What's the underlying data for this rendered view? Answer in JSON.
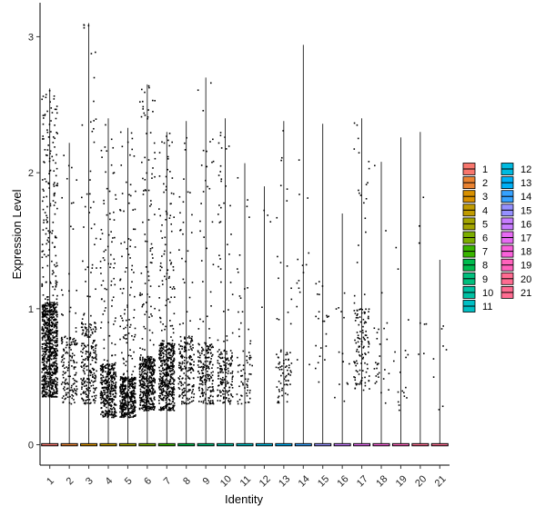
{
  "chart_data": {
    "type": "violin",
    "xlabel": "Identity",
    "ylabel": "Expression Level",
    "ylim": [
      -0.15,
      3.25
    ],
    "yticks": [
      0,
      1,
      2,
      3
    ],
    "grid": false,
    "legend_position": "right",
    "categories": [
      "1",
      "2",
      "3",
      "4",
      "5",
      "6",
      "7",
      "8",
      "9",
      "10",
      "11",
      "12",
      "13",
      "14",
      "15",
      "16",
      "17",
      "18",
      "19",
      "20",
      "21"
    ],
    "series": [
      {
        "name": "1",
        "color": "#F8766D",
        "max": 2.62,
        "points": 900,
        "dense_range": [
          0.35,
          1.05
        ]
      },
      {
        "name": "2",
        "color": "#EA8331",
        "max": 2.22,
        "points": 160,
        "dense_range": [
          0.3,
          0.8
        ]
      },
      {
        "name": "3",
        "color": "#D89000",
        "max": 3.1,
        "points": 260,
        "dense_range": [
          0.3,
          0.9
        ]
      },
      {
        "name": "4",
        "color": "#C09B00",
        "max": 2.4,
        "points": 420,
        "dense_range": [
          0.2,
          0.6
        ]
      },
      {
        "name": "5",
        "color": "#A3A500",
        "max": 2.33,
        "points": 460,
        "dense_range": [
          0.2,
          0.5
        ]
      },
      {
        "name": "6",
        "color": "#7CAE00",
        "max": 2.65,
        "points": 480,
        "dense_range": [
          0.25,
          0.65
        ]
      },
      {
        "name": "7",
        "color": "#39B600",
        "max": 2.3,
        "points": 520,
        "dense_range": [
          0.25,
          0.75
        ]
      },
      {
        "name": "8",
        "color": "#00BB4E",
        "max": 2.38,
        "points": 200,
        "dense_range": [
          0.3,
          0.8
        ]
      },
      {
        "name": "9",
        "color": "#00BF7D",
        "max": 2.7,
        "points": 210,
        "dense_range": [
          0.3,
          0.75
        ]
      },
      {
        "name": "10",
        "color": "#00C1A3",
        "max": 2.4,
        "points": 180,
        "dense_range": [
          0.3,
          0.7
        ]
      },
      {
        "name": "11",
        "color": "#00BFC4",
        "max": 2.07,
        "points": 70,
        "dense_range": [
          0.3,
          0.7
        ]
      },
      {
        "name": "12",
        "color": "#00BAE0",
        "max": 1.9,
        "points": 4,
        "dense_range": [
          1.0,
          1.9
        ]
      },
      {
        "name": "13",
        "color": "#00B0F6",
        "max": 2.38,
        "points": 80,
        "dense_range": [
          0.3,
          0.7
        ]
      },
      {
        "name": "14",
        "color": "#35A2FF",
        "max": 2.94,
        "points": 15,
        "dense_range": [
          0.5,
          2.0
        ]
      },
      {
        "name": "15",
        "color": "#9590FF",
        "max": 2.36,
        "points": 22,
        "dense_range": [
          0.4,
          1.2
        ]
      },
      {
        "name": "16",
        "color": "#C77CFF",
        "max": 1.7,
        "points": 14,
        "dense_range": [
          0.3,
          1.0
        ]
      },
      {
        "name": "17",
        "color": "#E76BF3",
        "max": 2.4,
        "points": 130,
        "dense_range": [
          0.4,
          1.0
        ]
      },
      {
        "name": "18",
        "color": "#FA62DB",
        "max": 2.08,
        "points": 30,
        "dense_range": [
          0.3,
          0.9
        ]
      },
      {
        "name": "19",
        "color": "#FF62BC",
        "max": 2.26,
        "points": 18,
        "dense_range": [
          0.25,
          0.7
        ]
      },
      {
        "name": "20",
        "color": "#FF6C91",
        "max": 2.3,
        "points": 8,
        "dense_range": [
          0.4,
          1.5
        ]
      },
      {
        "name": "21",
        "color": "#FF6C91",
        "max": 1.36,
        "points": 8,
        "dense_range": [
          0.25,
          0.9
        ]
      }
    ]
  }
}
